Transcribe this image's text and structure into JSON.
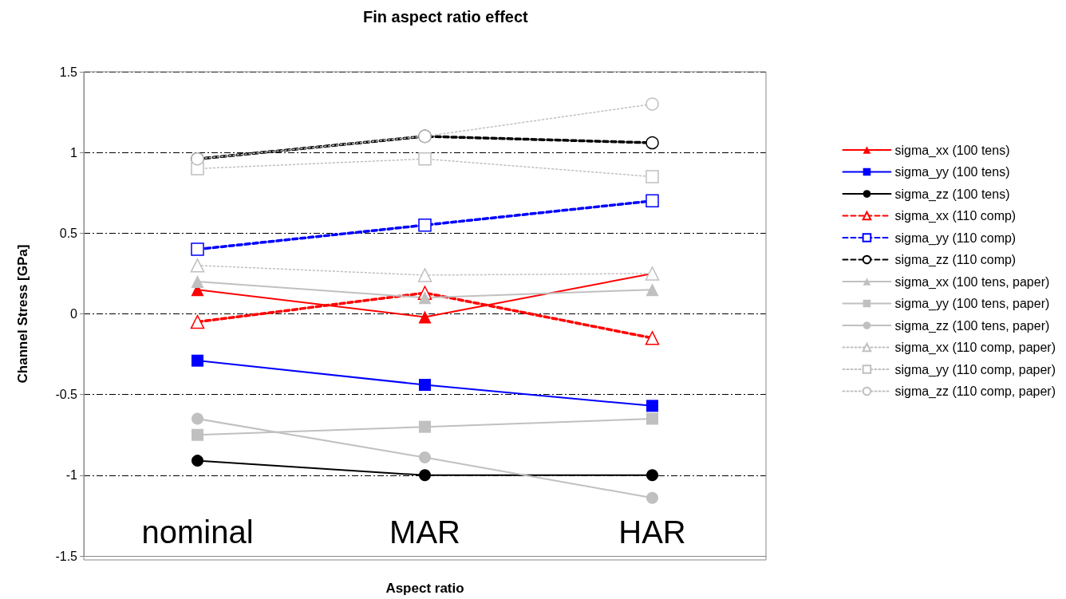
{
  "chart_data": {
    "type": "line",
    "title": "Fin aspect ratio effect",
    "xlabel": "Aspect ratio",
    "ylabel": "Channel Stress [GPa]",
    "categories": [
      "nominal",
      "MAR",
      "HAR"
    ],
    "ylim": [
      -1.5,
      1.5
    ],
    "yticks": [
      -1.5,
      -1,
      -0.5,
      0,
      0.5,
      1,
      1.5
    ],
    "grid": "y",
    "legend": "right",
    "series": [
      {
        "name": "sigma_xx (100 tens)",
        "color": "#ff0000",
        "marker": "triangle",
        "line_style": "solid",
        "values": [
          0.15,
          -0.02,
          0.25
        ]
      },
      {
        "name": "sigma_yy (100 tens)",
        "color": "#0000ff",
        "marker": "square",
        "line_style": "solid",
        "values": [
          -0.29,
          -0.44,
          -0.57
        ]
      },
      {
        "name": "sigma_zz (100 tens)",
        "color": "#000000",
        "marker": "circle",
        "line_style": "solid",
        "values": [
          -0.91,
          -1.0,
          -1.0
        ]
      },
      {
        "name": "sigma_xx (110 comp)",
        "color": "#ff0000",
        "marker": "triangle",
        "line_style": "dashed",
        "values": [
          -0.05,
          0.13,
          -0.15
        ]
      },
      {
        "name": "sigma_yy (110 comp)",
        "color": "#0000ff",
        "marker": "square",
        "line_style": "dashed",
        "values": [
          0.4,
          0.55,
          0.7
        ]
      },
      {
        "name": "sigma_zz (110 comp)",
        "color": "#000000",
        "marker": "circle",
        "line_style": "dashed",
        "values": [
          0.96,
          1.1,
          1.06
        ]
      },
      {
        "name": "sigma_xx (100 tens, paper)",
        "color": "#c0c0c0",
        "marker": "triangle",
        "line_style": "solid",
        "values": [
          0.2,
          0.1,
          0.15
        ]
      },
      {
        "name": "sigma_yy (100 tens, paper)",
        "color": "#c0c0c0",
        "marker": "square",
        "line_style": "solid",
        "values": [
          -0.75,
          -0.7,
          -0.65
        ]
      },
      {
        "name": "sigma_zz (100 tens, paper)",
        "color": "#c0c0c0",
        "marker": "circle",
        "line_style": "solid",
        "values": [
          -0.65,
          -0.89,
          -1.14
        ]
      },
      {
        "name": "sigma_xx (110 comp, paper)",
        "color": "#c0c0c0",
        "marker": "triangle",
        "line_style": "dotted",
        "values": [
          0.3,
          0.24,
          0.25
        ]
      },
      {
        "name": "sigma_yy (110 comp, paper)",
        "color": "#c0c0c0",
        "marker": "square",
        "line_style": "dotted",
        "values": [
          0.9,
          0.96,
          0.85
        ]
      },
      {
        "name": "sigma_zz (110 comp, paper)",
        "color": "#c0c0c0",
        "marker": "circle",
        "line_style": "dotted",
        "values": [
          0.96,
          1.1,
          1.3
        ]
      }
    ]
  }
}
